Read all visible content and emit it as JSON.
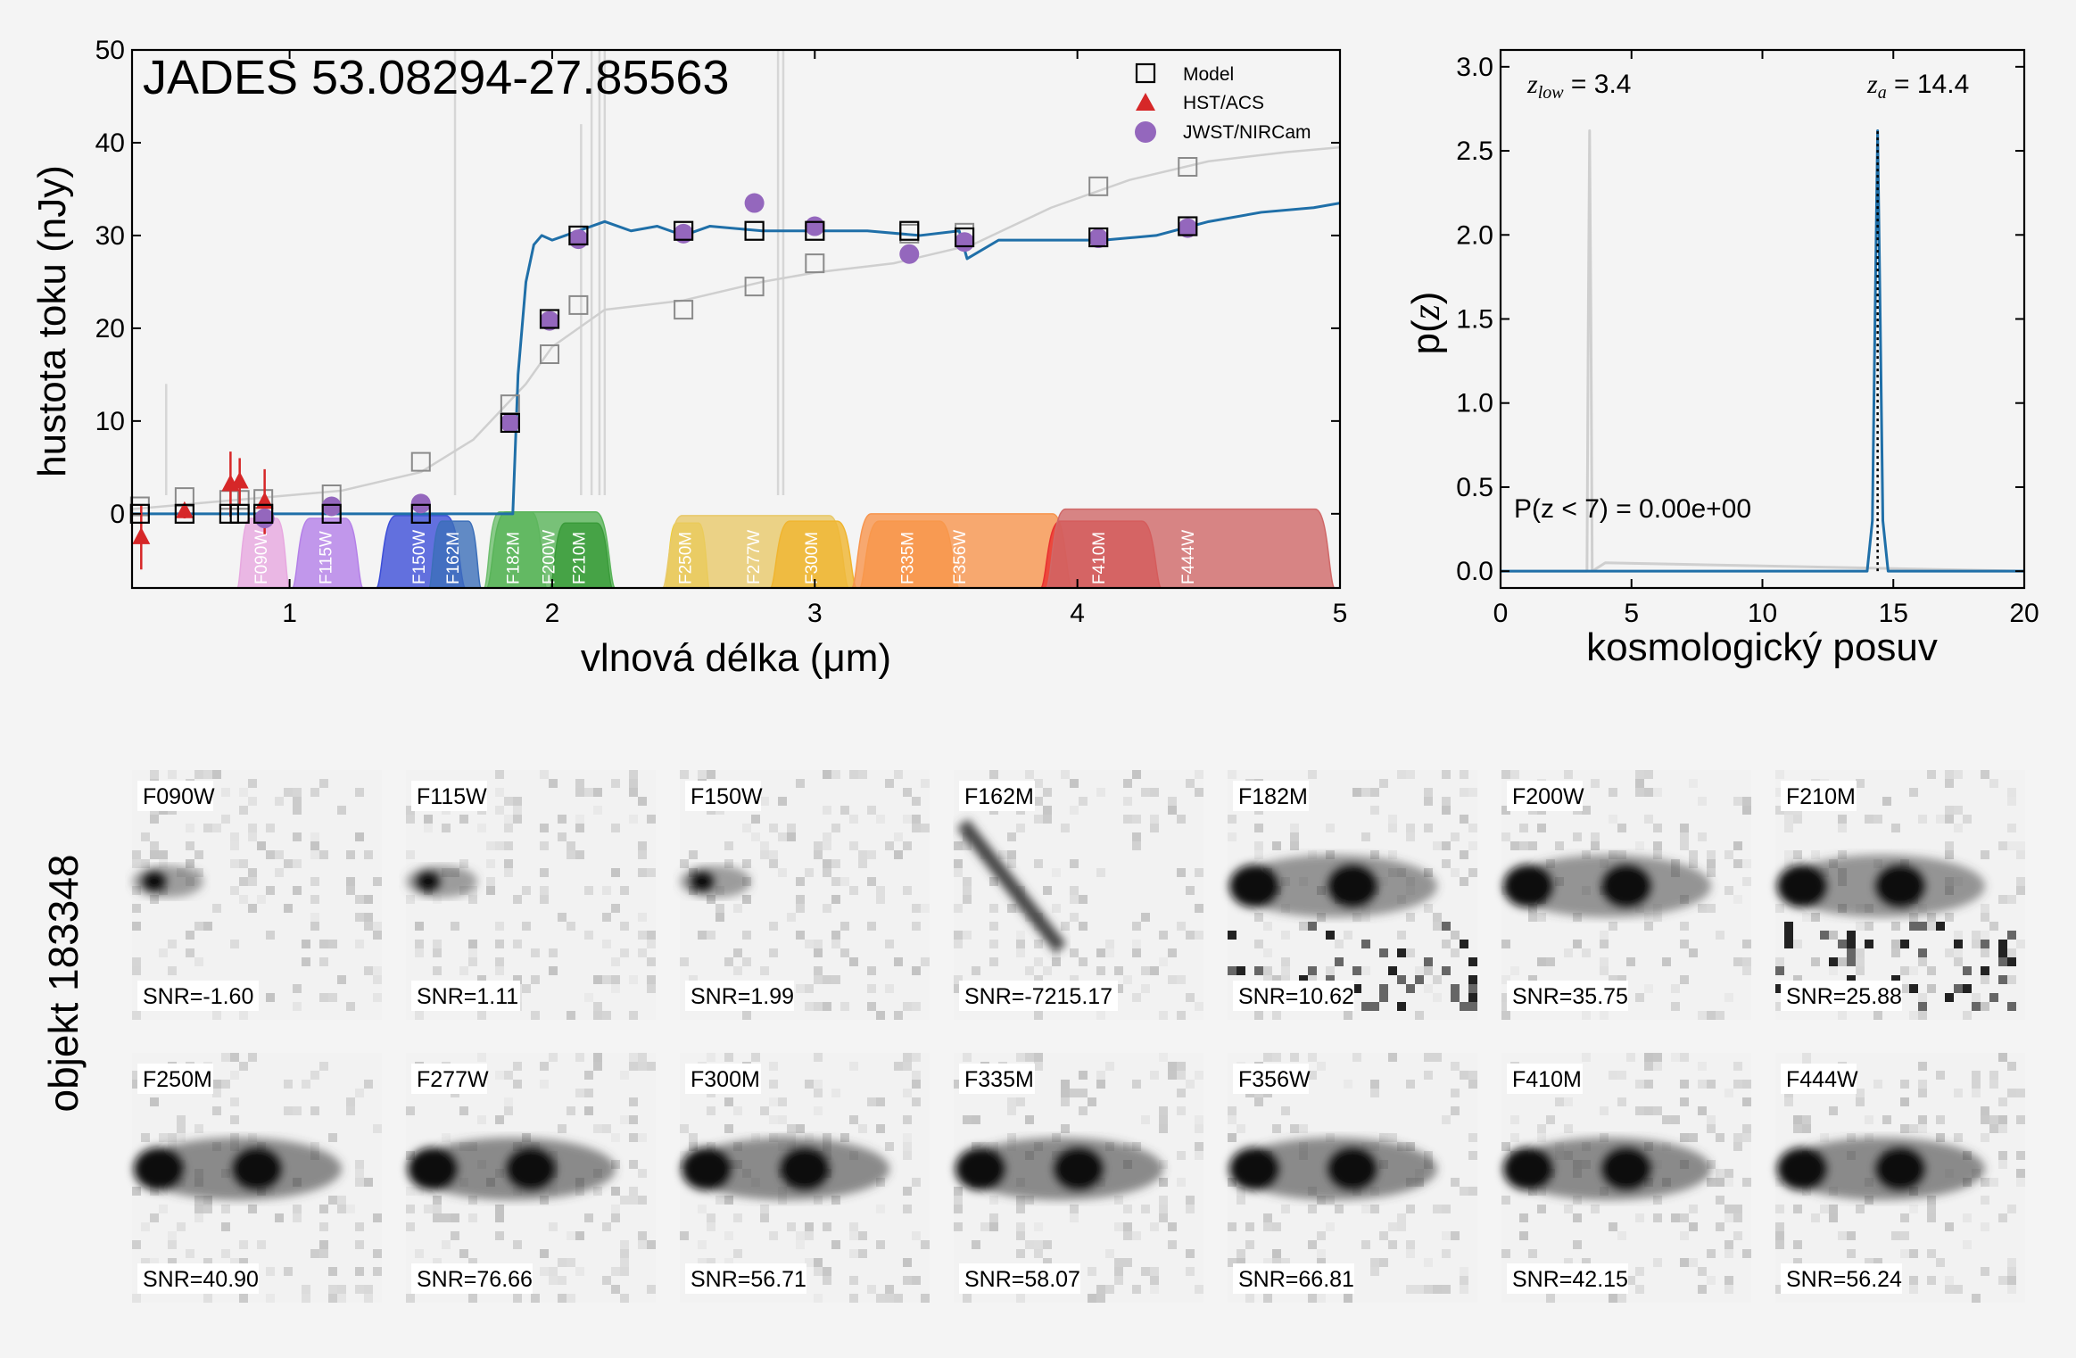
{
  "sed_panel": {
    "title": "JADES 53.08294-27.85563",
    "xlabel": "vlnová délka (μm)",
    "ylabel": "hustota toku (nJy)",
    "xlim": [
      0.4,
      5.0
    ],
    "ylim": [
      -8,
      50
    ],
    "xticks": [
      1,
      2,
      3,
      4,
      5
    ],
    "yticks": [
      0,
      10,
      20,
      30,
      40,
      50
    ],
    "legend": [
      {
        "label": "Model",
        "marker": "open-square"
      },
      {
        "label": "HST/ACS",
        "marker": "red-triangle"
      },
      {
        "label": "JWST/NIRCam",
        "marker": "purple-circle"
      }
    ]
  },
  "pz_panel": {
    "xlabel": "kosmologický posuv",
    "ylabel": "p(z)",
    "xlim": [
      0,
      20
    ],
    "ylim": [
      -0.1,
      3.1
    ],
    "xticks": [
      0,
      5,
      10,
      15,
      20
    ],
    "yticks": [
      "0.0",
      "0.5",
      "1.0",
      "1.5",
      "2.0",
      "2.5",
      "3.0"
    ],
    "zlow_label": "z",
    "zlow_sub": "low",
    "zlow_value": " = 3.4",
    "za_label": "z",
    "za_sub": "a",
    "za_value": " = 14.4",
    "prob_text": "P(z < 7) = 0.00e+00"
  },
  "cutouts": {
    "object_label": "objekt 183348",
    "row1": [
      {
        "band": "F090W",
        "snr": "SNR=-1.60"
      },
      {
        "band": "F115W",
        "snr": "SNR=1.11"
      },
      {
        "band": "F150W",
        "snr": "SNR=1.99"
      },
      {
        "band": "F162M",
        "snr": "SNR=-7215.17"
      },
      {
        "band": "F182M",
        "snr": "SNR=10.62"
      },
      {
        "band": "F200W",
        "snr": "SNR=35.75"
      },
      {
        "band": "F210M",
        "snr": "SNR=25.88"
      }
    ],
    "row2": [
      {
        "band": "F250M",
        "snr": "SNR=40.90"
      },
      {
        "band": "F277W",
        "snr": "SNR=76.66"
      },
      {
        "band": "F300M",
        "snr": "SNR=56.71"
      },
      {
        "band": "F335M",
        "snr": "SNR=58.07"
      },
      {
        "band": "F356W",
        "snr": "SNR=66.81"
      },
      {
        "band": "F410M",
        "snr": "SNR=42.15"
      },
      {
        "band": "F444W",
        "snr": "SNR=56.24"
      }
    ]
  },
  "chart_data": [
    {
      "type": "scatter",
      "title": "JADES 53.08294-27.85563",
      "xlabel": "vlnová délka (μm)",
      "ylabel": "hustota toku (nJy)",
      "xlim": [
        0.4,
        5.0
      ],
      "ylim": [
        -8,
        50
      ],
      "series": [
        {
          "name": "Model",
          "x": [
            0.43,
            0.6,
            0.77,
            0.81,
            0.9,
            1.16,
            1.5,
            1.84,
            1.99,
            2.1,
            2.5,
            2.77,
            3.0,
            3.36,
            3.57,
            4.08,
            4.42
          ],
          "y": [
            0,
            0,
            0,
            0,
            0,
            0,
            0,
            9.8,
            21,
            30,
            30.5,
            30.5,
            30.5,
            30.5,
            29.8,
            29.8,
            31
          ]
        },
        {
          "name": "HST/ACS",
          "x": [
            0.435,
            0.6,
            0.775,
            0.81,
            0.905
          ],
          "y": [
            -2.5,
            0.3,
            3.2,
            3.5,
            1.3
          ],
          "err": [
            3.5,
            0.8,
            3.5,
            2.5,
            3.5
          ]
        },
        {
          "name": "JWST/NIRCam",
          "x": [
            0.905,
            1.16,
            1.5,
            1.84,
            1.99,
            2.1,
            2.5,
            2.77,
            3.0,
            3.36,
            3.57,
            4.08,
            4.42
          ],
          "y": [
            -0.5,
            0.8,
            1.1,
            9.8,
            20.8,
            29.6,
            30.2,
            33.5,
            31.0,
            28.0,
            29.3,
            29.7,
            30.8
          ]
        }
      ],
      "secondary_model_squares": {
        "x": [
          0.43,
          0.6,
          0.77,
          0.81,
          0.9,
          1.16,
          1.5,
          1.84,
          1.99,
          2.1,
          2.5,
          2.77,
          3.0,
          3.36,
          3.57,
          4.08,
          4.42
        ],
        "y": [
          0.8,
          1.8,
          1.5,
          1.5,
          1.6,
          2.1,
          5.6,
          11.8,
          17.2,
          22.5,
          22.0,
          24.5,
          27.0,
          30.2,
          30.3,
          35.3,
          37.4
        ]
      },
      "best_fit_curve": {
        "x": [
          0.4,
          1.85,
          1.87,
          1.9,
          1.93,
          1.96,
          2.0,
          2.1,
          2.2,
          2.3,
          2.4,
          2.5,
          2.6,
          2.8,
          3.0,
          3.2,
          3.4,
          3.55,
          3.58,
          3.7,
          3.9,
          4.1,
          4.3,
          4.5,
          4.7,
          4.9,
          5.0
        ],
        "y": [
          0,
          0,
          15,
          25,
          29,
          30,
          29.5,
          30.5,
          31.5,
          30.5,
          31,
          30,
          31,
          30.5,
          30.5,
          30.5,
          30,
          30.5,
          27.5,
          29.5,
          29.5,
          29.5,
          30,
          31.5,
          32.5,
          33,
          33.5
        ]
      },
      "secondary_curve": {
        "x": [
          0.4,
          0.8,
          1.2,
          1.5,
          1.7,
          1.9,
          2.0,
          2.2,
          2.5,
          2.8,
          3.0,
          3.3,
          3.6,
          3.9,
          4.2,
          4.5,
          4.8,
          5.0
        ],
        "y": [
          0.5,
          1.5,
          2.5,
          4.5,
          8.0,
          14.0,
          18.0,
          22.0,
          23.0,
          25.0,
          26.0,
          27.0,
          29.0,
          33.0,
          36.0,
          38.0,
          39.0,
          39.5
        ]
      },
      "filters": [
        "F090W",
        "F115W",
        "F150W",
        "F162M",
        "F182M",
        "F200W",
        "F210M",
        "F250M",
        "F277W",
        "F300M",
        "F335M",
        "F356W",
        "F410M",
        "F444W"
      ]
    },
    {
      "type": "line",
      "xlabel": "kosmologický posuv",
      "ylabel": "p(z)",
      "xlim": [
        0,
        20
      ],
      "ylim": [
        -0.1,
        3.1
      ],
      "series": [
        {
          "x": [
            0,
            14.0,
            14.2,
            14.3,
            14.4,
            14.5,
            14.6,
            14.8,
            20
          ],
          "y": [
            0,
            0,
            0.3,
            1.5,
            2.62,
            1.5,
            0.3,
            0,
            0
          ]
        },
        {
          "x": [
            0,
            3.3,
            3.35,
            3.4,
            3.45,
            3.5,
            4.0,
            20
          ],
          "y": [
            0,
            0,
            1.5,
            2.62,
            1.5,
            0,
            0.05,
            0
          ]
        }
      ],
      "z_low": 3.4,
      "z_a": 14.4,
      "p_z_lt_7": "0.00e+00"
    }
  ]
}
